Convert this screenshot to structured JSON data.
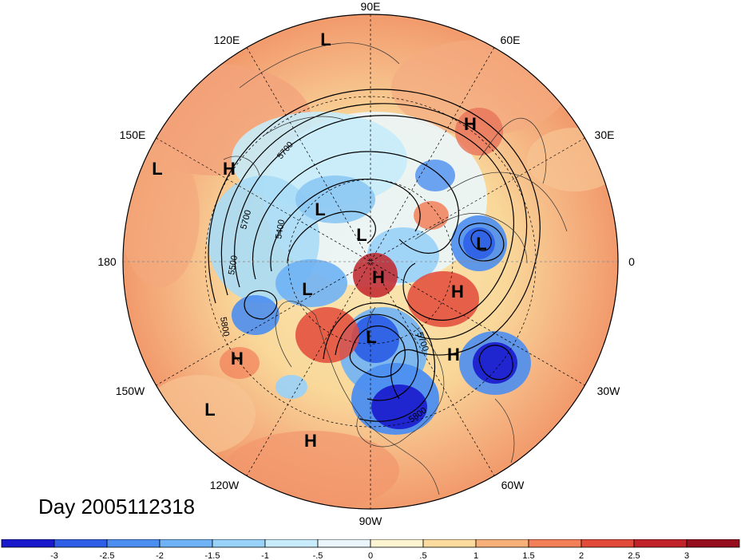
{
  "map": {
    "longitude_labels": {
      "n90e": "90E",
      "n60e": "60E",
      "n120e": "120E",
      "n30e": "30E",
      "n150e": "150E",
      "n0": "0",
      "n180": "180",
      "n30w": "30W",
      "n150w": "150W",
      "n60w": "60W",
      "n120w": "120W",
      "n90w": "90W"
    },
    "pressure_centers": [
      {
        "id": "c1",
        "label": "L"
      },
      {
        "id": "c2",
        "label": "H"
      },
      {
        "id": "c3",
        "label": "L"
      },
      {
        "id": "c4",
        "label": "H"
      },
      {
        "id": "c5",
        "label": "L"
      },
      {
        "id": "c6",
        "label": "L"
      },
      {
        "id": "c7",
        "label": "L"
      },
      {
        "id": "c8",
        "label": "L"
      },
      {
        "id": "c9",
        "label": "H"
      },
      {
        "id": "c10",
        "label": "H"
      },
      {
        "id": "c11",
        "label": "L"
      },
      {
        "id": "c12",
        "label": "H"
      },
      {
        "id": "c13",
        "label": "H"
      },
      {
        "id": "c14",
        "label": "L"
      },
      {
        "id": "c15",
        "label": "H"
      }
    ],
    "contour_labels": [
      "5700",
      "5700",
      "5400",
      "5500",
      "5800",
      "5700",
      "5800"
    ],
    "date_label": "Day 2005112318"
  },
  "colorbar": {
    "ticks": [
      "-3",
      "-2.5",
      "-2",
      "-1.5",
      "-1",
      "-.5",
      "0",
      ".5",
      "1",
      "1.5",
      "2",
      "2.5",
      "3"
    ],
    "colors": [
      "#1a1acc",
      "#2e5fe6",
      "#4c8ef0",
      "#6fb2f5",
      "#98d2f8",
      "#c8ecfb",
      "#eaf6fb",
      "#fdf4d2",
      "#fbdc9e",
      "#f8b07a",
      "#f27f58",
      "#e24a3a",
      "#c0232a",
      "#960f1f"
    ]
  }
}
